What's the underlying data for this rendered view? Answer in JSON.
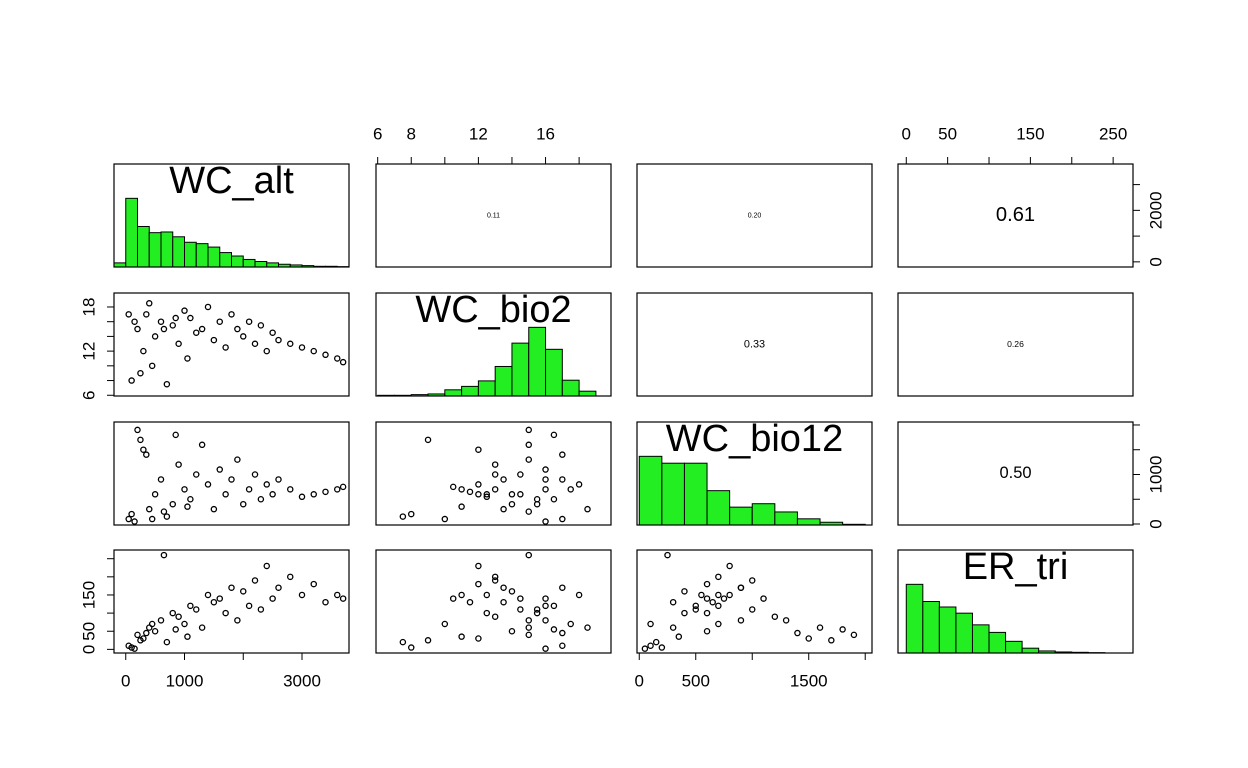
{
  "chart_data": {
    "type": "pairs",
    "hist_color": "#22ee22",
    "point_color": "#000000",
    "hist_ylim": [
      0,
      1.5
    ],
    "variables": [
      {
        "name": "WC_alt",
        "lim": [
          -200,
          3800
        ],
        "xticks": [
          0,
          1000,
          {
            "value": 2000
          },
          3000
        ],
        "yticks": [
          0,
          {
            "value": 1000
          },
          2000,
          {
            "value": 3000
          }
        ],
        "bins": [
          -200,
          0,
          200,
          400,
          600,
          800,
          1000,
          1200,
          1400,
          1600,
          1800,
          2000,
          2200,
          2400,
          2600,
          2800,
          3000,
          3200,
          3400,
          3600,
          3800
        ],
        "counts": [
          0.06,
          1,
          0.59,
          0.5,
          0.51,
          0.44,
          0.36,
          0.34,
          0.29,
          0.21,
          0.16,
          0.11,
          0.08,
          0.06,
          0.04,
          0.03,
          0.02,
          0.01,
          0.01,
          0.005
        ]
      },
      {
        "name": "WC_bio2",
        "lim": [
          5.9,
          19.9
        ],
        "xticks": [
          6,
          8,
          {
            "value": 10
          },
          12,
          {
            "value": 14
          },
          16,
          {
            "value": 18
          }
        ],
        "yticks": [
          6,
          {
            "value": 8
          },
          {
            "value": 10
          },
          12,
          {
            "value": 14
          },
          {
            "value": 16
          },
          18
        ],
        "bins": [
          6,
          7,
          8,
          9,
          10,
          11,
          12,
          13,
          14,
          15,
          16,
          17,
          18,
          19
        ],
        "counts": [
          0.01,
          0.01,
          0.02,
          0.03,
          0.09,
          0.14,
          0.22,
          0.43,
          0.77,
          1,
          0.68,
          0.23,
          0.07
        ]
      },
      {
        "name": "WC_bio12",
        "lim": [
          -20,
          2060
        ],
        "xticks": [
          0,
          500,
          {
            "value": 1000
          },
          1500,
          {
            "value": 2000
          }
        ],
        "yticks": [
          0,
          {
            "value": 500
          },
          1000,
          {
            "value": 1500
          },
          {
            "value": 2000
          }
        ],
        "bins": [
          0,
          200,
          400,
          600,
          800,
          1000,
          1200,
          1400,
          1600,
          1800,
          2000
        ],
        "counts": [
          1,
          0.9,
          0.9,
          0.5,
          0.26,
          0.31,
          0.19,
          0.09,
          0.04,
          0.01
        ]
      },
      {
        "name": "ER_tri",
        "lim": [
          -10,
          274
        ],
        "xticks": [
          0,
          50,
          {
            "value": 100
          },
          150,
          {
            "value": 200
          },
          250
        ],
        "yticks": [
          0,
          50,
          {
            "value": 100
          },
          150,
          {
            "value": 200
          },
          {
            "value": 250
          }
        ],
        "bins": [
          0,
          20,
          40,
          60,
          80,
          100,
          120,
          140,
          160,
          180,
          200,
          220,
          240
        ],
        "counts": [
          1,
          0.75,
          0.67,
          0.58,
          0.41,
          0.3,
          0.17,
          0.07,
          0.03,
          0.015,
          0.01,
          0.005
        ]
      }
    ],
    "correlations": [
      [
        null,
        "0.11",
        "0.20",
        "0.61"
      ],
      [
        null,
        null,
        "0.33",
        "0.26"
      ],
      [
        null,
        null,
        null,
        "0.50"
      ],
      [
        null,
        null,
        null,
        null
      ]
    ],
    "observations": [
      [
        50,
        17,
        100,
        10
      ],
      [
        100,
        8,
        200,
        5
      ],
      [
        200,
        15,
        1900,
        40
      ],
      [
        300,
        12,
        1500,
        30
      ],
      [
        400,
        18.5,
        300,
        60
      ],
      [
        500,
        14,
        600,
        50
      ],
      [
        600,
        16,
        900,
        80
      ],
      [
        700,
        7.5,
        150,
        20
      ],
      [
        800,
        15.5,
        400,
        100
      ],
      [
        900,
        13,
        1200,
        90
      ],
      [
        1000,
        17.5,
        700,
        70
      ],
      [
        1100,
        16.5,
        500,
        120
      ],
      [
        1200,
        14.5,
        1000,
        110
      ],
      [
        1300,
        15,
        1600,
        60
      ],
      [
        1400,
        18,
        800,
        150
      ],
      [
        1500,
        13.5,
        300,
        130
      ],
      [
        1600,
        16,
        1100,
        140
      ],
      [
        1700,
        12.5,
        600,
        100
      ],
      [
        1800,
        17,
        900,
        170
      ],
      [
        1900,
        15,
        1300,
        80
      ],
      [
        2000,
        14,
        400,
        160
      ],
      [
        2100,
        16,
        700,
        120
      ],
      [
        2200,
        13,
        1000,
        190
      ],
      [
        2300,
        15.5,
        500,
        110
      ],
      [
        2400,
        12,
        800,
        230
      ],
      [
        2500,
        14.5,
        600,
        140
      ],
      [
        2600,
        13.5,
        900,
        170
      ],
      [
        2800,
        13,
        700,
        200
      ],
      [
        3000,
        12.5,
        550,
        150
      ],
      [
        3200,
        12,
        600,
        180
      ],
      [
        3400,
        11.5,
        650,
        130
      ],
      [
        3600,
        11,
        700,
        150
      ],
      [
        3700,
        10.5,
        750,
        140
      ],
      [
        150,
        16,
        50,
        2
      ],
      [
        250,
        9,
        1700,
        25
      ],
      [
        350,
        17,
        1400,
        45
      ],
      [
        650,
        15,
        250,
        260
      ],
      [
        1050,
        11,
        350,
        35
      ],
      [
        450,
        10,
        100,
        70
      ],
      [
        850,
        16.5,
        1800,
        55
      ]
    ]
  }
}
